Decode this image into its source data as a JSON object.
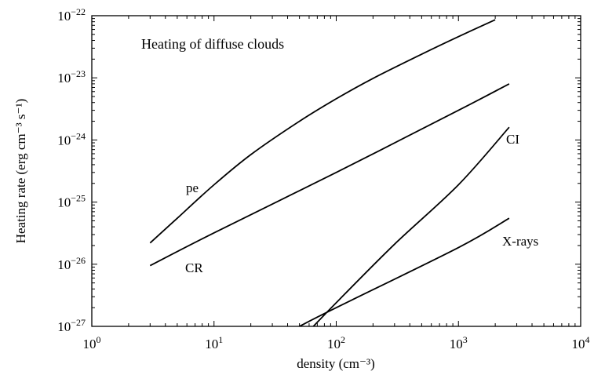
{
  "chart_data": {
    "type": "line",
    "title": "",
    "annotation": "Heating of diffuse clouds",
    "xlabel": "density (cm⁻³)",
    "ylabel": "Heating rate (erg cm⁻³ s⁻¹)",
    "x_scale": "log",
    "y_scale": "log",
    "xlim": [
      1,
      10000
    ],
    "ylim": [
      1e-27,
      1e-22
    ],
    "x_ticks": [
      {
        "base": "10",
        "exp": "0",
        "value": 1
      },
      {
        "base": "10",
        "exp": "1",
        "value": 10
      },
      {
        "base": "10",
        "exp": "2",
        "value": 100
      },
      {
        "base": "10",
        "exp": "3",
        "value": 1000
      },
      {
        "base": "10",
        "exp": "4",
        "value": 10000
      }
    ],
    "y_ticks": [
      {
        "base": "10",
        "exp": "−22",
        "value": 1e-22
      },
      {
        "base": "10",
        "exp": "−23",
        "value": 1e-23
      },
      {
        "base": "10",
        "exp": "−24",
        "value": 1e-24
      },
      {
        "base": "10",
        "exp": "−25",
        "value": 1e-25
      },
      {
        "base": "10",
        "exp": "−26",
        "value": 1e-26
      },
      {
        "base": "10",
        "exp": "−27",
        "value": 1e-27
      }
    ],
    "grid": false,
    "series": [
      {
        "name": "pe",
        "x": [
          3,
          5,
          10,
          20,
          50,
          100,
          200,
          500,
          1000,
          2000
        ],
        "y": [
          2.2e-26,
          5.5e-26,
          1.9e-25,
          5.8e-25,
          2e-24,
          4.6e-24,
          9.8e-24,
          2.4e-23,
          4.6e-23,
          8.6e-23
        ]
      },
      {
        "name": "CR",
        "x": [
          3,
          10,
          100,
          1000,
          2600
        ],
        "y": [
          9.5e-27,
          3.2e-26,
          3e-25,
          3e-24,
          8e-24
        ]
      },
      {
        "name": "CI",
        "x": [
          65,
          100,
          300,
          1000,
          2600
        ],
        "y": [
          1e-27,
          2.4e-27,
          2.1e-26,
          1.9e-25,
          1.6e-24
        ]
      },
      {
        "name": "X-rays",
        "x": [
          50,
          100,
          1000,
          2600
        ],
        "y": [
          1e-27,
          2e-27,
          1.85e-26,
          5.5e-26
        ]
      }
    ]
  }
}
